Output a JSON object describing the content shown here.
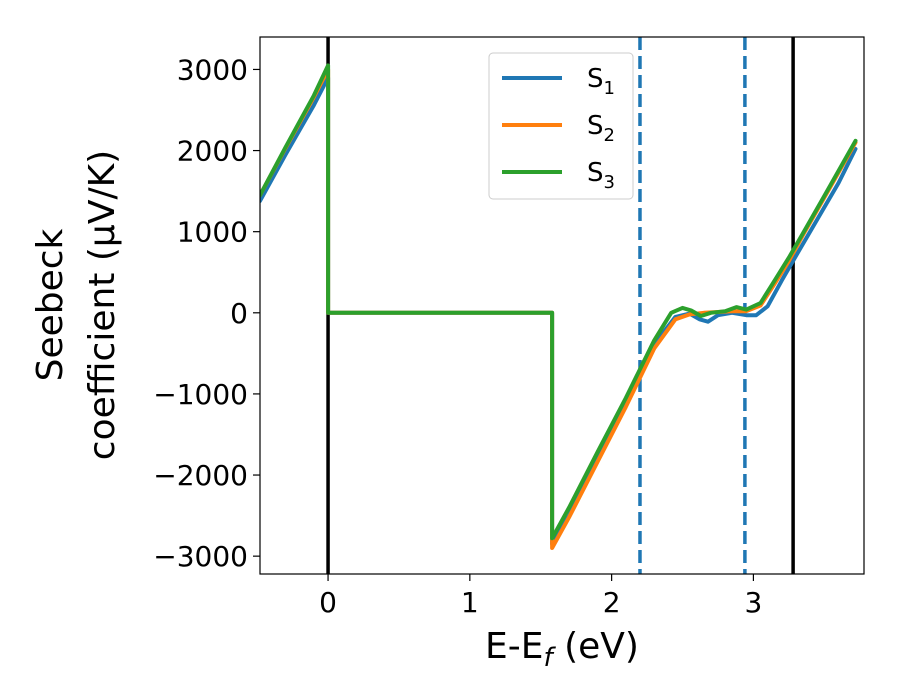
{
  "chart_data": {
    "type": "line",
    "title": "",
    "xlabel": {
      "base": "E-E",
      "sub": "f",
      "rest": " (eV)"
    },
    "ylabel": {
      "line1": "Seebeck",
      "line2": "coefficient  (μV/K)"
    },
    "xlim": [
      -0.48,
      3.78
    ],
    "ylim": [
      -3220,
      3400
    ],
    "xticks": [
      0,
      1,
      2,
      3
    ],
    "yticks": [
      -3000,
      -2000,
      -1000,
      0,
      1000,
      2000,
      3000
    ],
    "xtick_labels": [
      "0",
      "1",
      "2",
      "3"
    ],
    "ytick_labels": [
      "−3000",
      "−2000",
      "−1000",
      "0",
      "1000",
      "2000",
      "3000"
    ],
    "legend_position": "upper-center",
    "colors": {
      "S1": "#1f77b4",
      "S2": "#ff7f0e",
      "S3": "#2ca02c",
      "vline_solid": "#000000",
      "vline_dashed": "#1f77b4"
    },
    "vlines": [
      {
        "x": 0.0,
        "style": "solid",
        "color": "#000000"
      },
      {
        "x": 3.28,
        "style": "solid",
        "color": "#000000"
      },
      {
        "x": 2.2,
        "style": "dashed",
        "color": "#1f77b4"
      },
      {
        "x": 2.94,
        "style": "dashed",
        "color": "#1f77b4"
      }
    ],
    "series": [
      {
        "name": "S1",
        "label_base": "S",
        "label_sub": "1",
        "color": "#1f77b4",
        "x": [
          -0.48,
          -0.3,
          -0.1,
          0.0,
          0.0,
          1.58,
          1.58,
          1.7,
          1.9,
          2.1,
          2.3,
          2.45,
          2.55,
          2.62,
          2.68,
          2.75,
          2.85,
          2.95,
          3.02,
          3.1,
          3.2,
          3.3,
          3.45,
          3.6,
          3.72
        ],
        "y": [
          1380,
          1950,
          2560,
          2900,
          0,
          0,
          -2850,
          -2500,
          -1800,
          -1100,
          -390,
          -50,
          -10,
          -80,
          -110,
          -30,
          0,
          -30,
          -30,
          80,
          400,
          700,
          1150,
          1600,
          2020
        ]
      },
      {
        "name": "S2",
        "label_base": "S",
        "label_sub": "2",
        "color": "#ff7f0e",
        "x": [
          -0.48,
          -0.3,
          -0.1,
          0.0,
          0.0,
          1.58,
          1.58,
          1.7,
          1.9,
          2.1,
          2.3,
          2.45,
          2.55,
          2.65,
          2.75,
          2.85,
          2.95,
          3.05,
          3.15,
          3.25,
          3.35,
          3.5,
          3.72
        ],
        "y": [
          1450,
          2030,
          2660,
          3000,
          0,
          0,
          -2900,
          -2520,
          -1840,
          -1160,
          -440,
          -80,
          -20,
          0,
          10,
          20,
          20,
          90,
          360,
          640,
          960,
          1420,
          2100
        ]
      },
      {
        "name": "S3",
        "label_base": "S",
        "label_sub": "3",
        "color": "#2ca02c",
        "x": [
          -0.48,
          -0.3,
          -0.1,
          0.0,
          0.0,
          1.58,
          1.58,
          1.7,
          1.9,
          2.1,
          2.3,
          2.42,
          2.5,
          2.56,
          2.63,
          2.7,
          2.8,
          2.88,
          2.95,
          3.05,
          3.15,
          3.25,
          3.35,
          3.5,
          3.72
        ],
        "y": [
          1450,
          2040,
          2680,
          3050,
          0,
          0,
          -2780,
          -2400,
          -1720,
          -1050,
          -340,
          0,
          60,
          30,
          -40,
          0,
          20,
          70,
          40,
          120,
          400,
          680,
          980,
          1440,
          2120
        ]
      }
    ]
  }
}
